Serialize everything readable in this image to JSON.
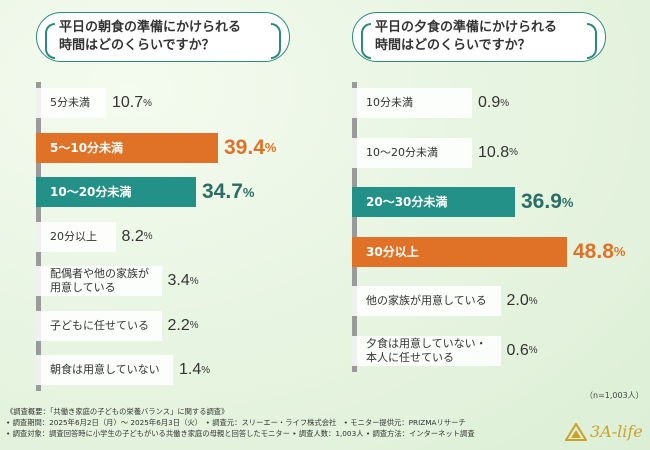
{
  "chart_data": [
    {
      "type": "bar",
      "title_lines": [
        "平日の朝食の準備にかけられる",
        "時間はどのくらいですか？"
      ],
      "categories": [
        "5分未満",
        "5〜10分未満",
        "10〜20分未満",
        "20分以上",
        "配偶者や他の家族が用意している",
        "子どもに任せている",
        "朝食は用意していない"
      ],
      "label_lines": [
        [
          "5分未満"
        ],
        [
          "5〜10分未満"
        ],
        [
          "10〜20分未満"
        ],
        [
          "20分以上"
        ],
        [
          "配偶者や他の家族が",
          "用意している"
        ],
        [
          "子どもに任せている"
        ],
        [
          "朝食は用意していない"
        ]
      ],
      "values": [
        10.7,
        39.4,
        34.7,
        8.2,
        3.4,
        2.2,
        1.4
      ],
      "highlight": [
        "gray",
        "orange",
        "teal",
        "gray",
        "gray",
        "gray",
        "gray"
      ],
      "unit": "%"
    },
    {
      "type": "bar",
      "title_lines": [
        "平日の夕食の準備にかけられる",
        "時間はどのくらいですか？"
      ],
      "categories": [
        "10分未満",
        "10〜20分未満",
        "20〜30分未満",
        "30分以上",
        "他の家族が用意している",
        "夕食は用意していない・本人に任せている"
      ],
      "label_lines": [
        [
          "10分未満"
        ],
        [
          "10〜20分未満"
        ],
        [
          "20〜30分未満"
        ],
        [
          "30分以上"
        ],
        [
          "他の家族が用意している"
        ],
        [
          "夕食は用意していない・",
          "本人に任せている"
        ]
      ],
      "values": [
        0.9,
        10.8,
        36.9,
        48.8,
        2.0,
        0.6
      ],
      "highlight": [
        "gray",
        "gray",
        "teal",
        "orange",
        "gray",
        "gray"
      ],
      "unit": "%"
    }
  ],
  "sample_note": "（n=1,003人）",
  "footer": [
    "《調査概要：「共働き家庭の子どもの栄養バランス」に関する調査》",
    "• 調査期間：2025年6月2日（月）〜 2025年6月3日（火）　• 調査元：スリーエー・ライフ株式会社　• モニター提供元：PRIZMAリサーチ",
    "• 調査対象：調査回答時に小学生の子どもがいる共働き家庭の母親と回答したモニター • 調査人数：1,003人 • 調査方法：インターネット調査"
  ],
  "logo_text": "3A-life",
  "colors": {
    "orange": "#e07228",
    "teal": "#239187",
    "frame": "#2a8a7c",
    "logo": "#c9a227"
  }
}
